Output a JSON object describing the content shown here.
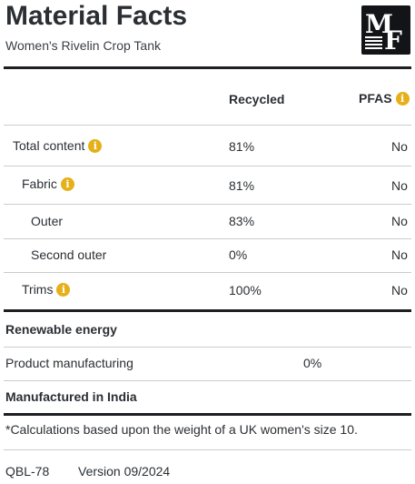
{
  "header": {
    "title": "Material Facts",
    "subtitle": "Women's Rivelin Crop Tank",
    "logo_text": "MF"
  },
  "columns": {
    "recycled": "Recycled",
    "pfas": "PFAS"
  },
  "rows": [
    {
      "label": "Total content",
      "info": true,
      "recycled": "81%",
      "pfas": "No"
    },
    {
      "label": "Fabric",
      "info": true,
      "recycled": "81%",
      "pfas": "No"
    },
    {
      "label": "Outer",
      "info": false,
      "recycled": "83%",
      "pfas": "No"
    },
    {
      "label": "Second outer",
      "info": false,
      "recycled": "0%",
      "pfas": "No"
    },
    {
      "label": "Trims",
      "info": true,
      "recycled": "100%",
      "pfas": "No"
    }
  ],
  "renewable": {
    "heading": "Renewable energy",
    "item_label": "Product manufacturing",
    "item_value": "0%"
  },
  "origin": "Manufactured in India",
  "footnote": "*Calculations based upon the weight of a UK women's size 10.",
  "footer": {
    "code": "QBL-78",
    "version": "Version 09/2024"
  },
  "colors": {
    "info_badge": "#e5b018",
    "logo_bg": "#121418",
    "text": "#2b2f33"
  },
  "icons": {
    "info": "info-icon",
    "logo": "mf-logo"
  }
}
